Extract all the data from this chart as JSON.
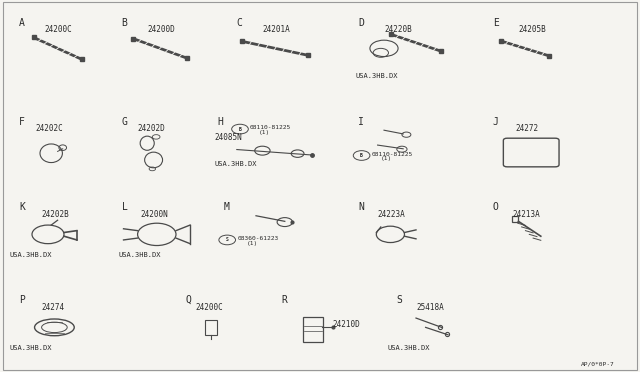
{
  "background_color": "#f5f4f0",
  "line_color": "#4a4a4a",
  "text_color": "#2a2a2a",
  "page_code": "AP/0*0P·7",
  "label_fs": 7,
  "part_fs": 5.5,
  "note_fs": 5.0,
  "small_fs": 4.5,
  "cols": [
    0.09,
    0.25,
    0.43,
    0.62,
    0.83
  ],
  "rows": [
    0.83,
    0.58,
    0.35,
    0.1
  ]
}
